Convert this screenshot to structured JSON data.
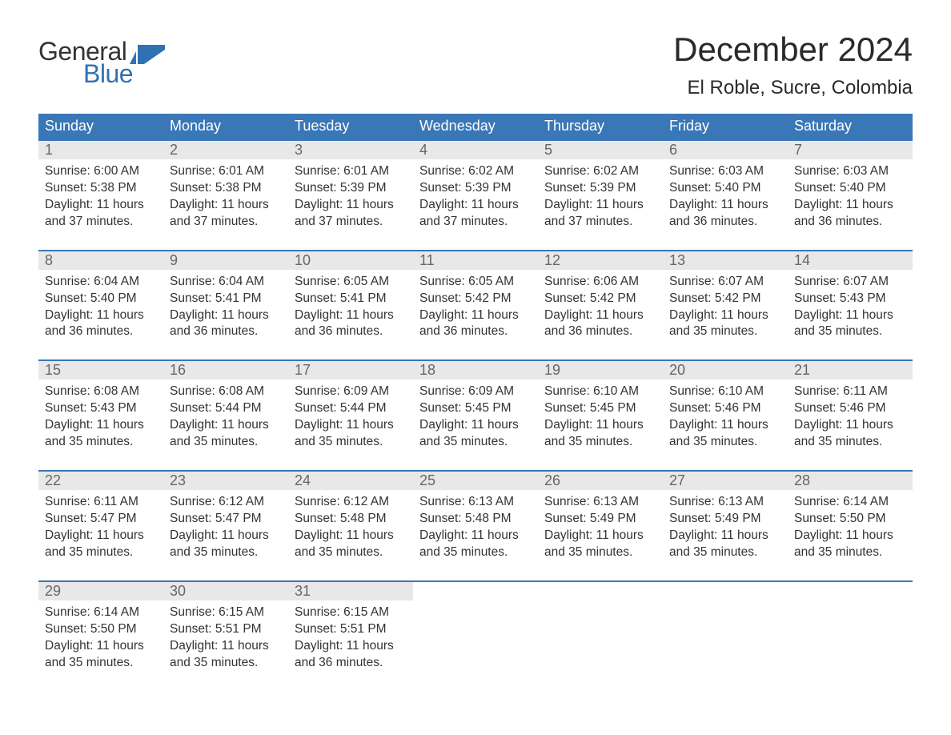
{
  "logo": {
    "word1": "General",
    "word2": "Blue",
    "accent_color": "#2f72b3"
  },
  "title": "December 2024",
  "location": "El Roble, Sucre, Colombia",
  "colors": {
    "header_bg": "#3a77b6",
    "header_text": "#ffffff",
    "daynum_bg": "#e8e8e8",
    "daynum_text": "#666666",
    "body_text": "#333333",
    "week_border": "#3a77b6",
    "page_bg": "#ffffff"
  },
  "typography": {
    "title_fontsize": 42,
    "location_fontsize": 24,
    "dow_fontsize": 18,
    "daynum_fontsize": 18,
    "body_fontsize": 15.5
  },
  "days_of_week": [
    "Sunday",
    "Monday",
    "Tuesday",
    "Wednesday",
    "Thursday",
    "Friday",
    "Saturday"
  ],
  "labels": {
    "sunrise": "Sunrise:",
    "sunset": "Sunset:",
    "daylight": "Daylight:",
    "hours_word": "hours",
    "minutes_suffix": "minutes.",
    "and_word": "and"
  },
  "weeks": [
    [
      {
        "n": 1,
        "sunrise": "6:00 AM",
        "sunset": "5:38 PM",
        "dl_h": 11,
        "dl_m": 37
      },
      {
        "n": 2,
        "sunrise": "6:01 AM",
        "sunset": "5:38 PM",
        "dl_h": 11,
        "dl_m": 37
      },
      {
        "n": 3,
        "sunrise": "6:01 AM",
        "sunset": "5:39 PM",
        "dl_h": 11,
        "dl_m": 37
      },
      {
        "n": 4,
        "sunrise": "6:02 AM",
        "sunset": "5:39 PM",
        "dl_h": 11,
        "dl_m": 37
      },
      {
        "n": 5,
        "sunrise": "6:02 AM",
        "sunset": "5:39 PM",
        "dl_h": 11,
        "dl_m": 37
      },
      {
        "n": 6,
        "sunrise": "6:03 AM",
        "sunset": "5:40 PM",
        "dl_h": 11,
        "dl_m": 36
      },
      {
        "n": 7,
        "sunrise": "6:03 AM",
        "sunset": "5:40 PM",
        "dl_h": 11,
        "dl_m": 36
      }
    ],
    [
      {
        "n": 8,
        "sunrise": "6:04 AM",
        "sunset": "5:40 PM",
        "dl_h": 11,
        "dl_m": 36
      },
      {
        "n": 9,
        "sunrise": "6:04 AM",
        "sunset": "5:41 PM",
        "dl_h": 11,
        "dl_m": 36
      },
      {
        "n": 10,
        "sunrise": "6:05 AM",
        "sunset": "5:41 PM",
        "dl_h": 11,
        "dl_m": 36
      },
      {
        "n": 11,
        "sunrise": "6:05 AM",
        "sunset": "5:42 PM",
        "dl_h": 11,
        "dl_m": 36
      },
      {
        "n": 12,
        "sunrise": "6:06 AM",
        "sunset": "5:42 PM",
        "dl_h": 11,
        "dl_m": 36
      },
      {
        "n": 13,
        "sunrise": "6:07 AM",
        "sunset": "5:42 PM",
        "dl_h": 11,
        "dl_m": 35
      },
      {
        "n": 14,
        "sunrise": "6:07 AM",
        "sunset": "5:43 PM",
        "dl_h": 11,
        "dl_m": 35
      }
    ],
    [
      {
        "n": 15,
        "sunrise": "6:08 AM",
        "sunset": "5:43 PM",
        "dl_h": 11,
        "dl_m": 35
      },
      {
        "n": 16,
        "sunrise": "6:08 AM",
        "sunset": "5:44 PM",
        "dl_h": 11,
        "dl_m": 35
      },
      {
        "n": 17,
        "sunrise": "6:09 AM",
        "sunset": "5:44 PM",
        "dl_h": 11,
        "dl_m": 35
      },
      {
        "n": 18,
        "sunrise": "6:09 AM",
        "sunset": "5:45 PM",
        "dl_h": 11,
        "dl_m": 35
      },
      {
        "n": 19,
        "sunrise": "6:10 AM",
        "sunset": "5:45 PM",
        "dl_h": 11,
        "dl_m": 35
      },
      {
        "n": 20,
        "sunrise": "6:10 AM",
        "sunset": "5:46 PM",
        "dl_h": 11,
        "dl_m": 35
      },
      {
        "n": 21,
        "sunrise": "6:11 AM",
        "sunset": "5:46 PM",
        "dl_h": 11,
        "dl_m": 35
      }
    ],
    [
      {
        "n": 22,
        "sunrise": "6:11 AM",
        "sunset": "5:47 PM",
        "dl_h": 11,
        "dl_m": 35
      },
      {
        "n": 23,
        "sunrise": "6:12 AM",
        "sunset": "5:47 PM",
        "dl_h": 11,
        "dl_m": 35
      },
      {
        "n": 24,
        "sunrise": "6:12 AM",
        "sunset": "5:48 PM",
        "dl_h": 11,
        "dl_m": 35
      },
      {
        "n": 25,
        "sunrise": "6:13 AM",
        "sunset": "5:48 PM",
        "dl_h": 11,
        "dl_m": 35
      },
      {
        "n": 26,
        "sunrise": "6:13 AM",
        "sunset": "5:49 PM",
        "dl_h": 11,
        "dl_m": 35
      },
      {
        "n": 27,
        "sunrise": "6:13 AM",
        "sunset": "5:49 PM",
        "dl_h": 11,
        "dl_m": 35
      },
      {
        "n": 28,
        "sunrise": "6:14 AM",
        "sunset": "5:50 PM",
        "dl_h": 11,
        "dl_m": 35
      }
    ],
    [
      {
        "n": 29,
        "sunrise": "6:14 AM",
        "sunset": "5:50 PM",
        "dl_h": 11,
        "dl_m": 35
      },
      {
        "n": 30,
        "sunrise": "6:15 AM",
        "sunset": "5:51 PM",
        "dl_h": 11,
        "dl_m": 35
      },
      {
        "n": 31,
        "sunrise": "6:15 AM",
        "sunset": "5:51 PM",
        "dl_h": 11,
        "dl_m": 36
      },
      null,
      null,
      null,
      null
    ]
  ]
}
